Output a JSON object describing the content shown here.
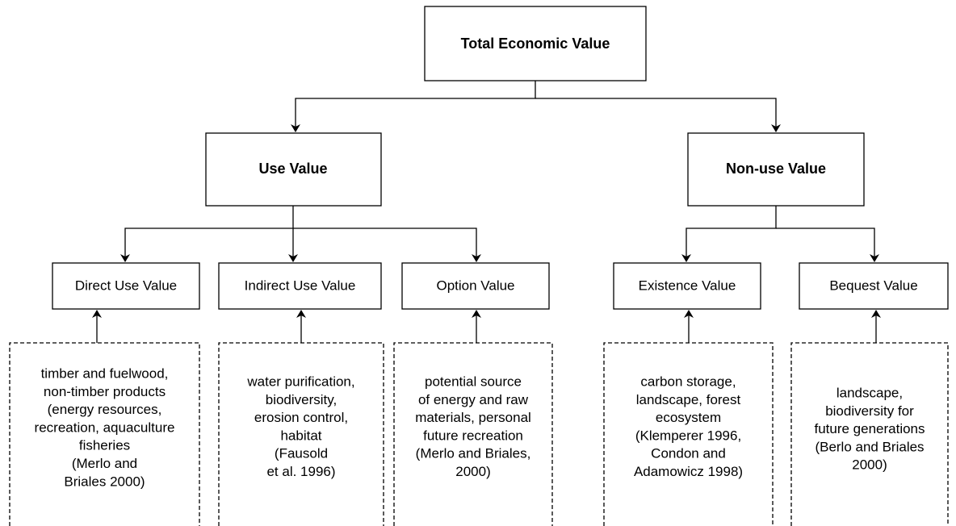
{
  "root": {
    "label": "Total Economic Value"
  },
  "categories": [
    {
      "label": "Use Value"
    },
    {
      "label": "Non-use Value"
    }
  ],
  "values": [
    {
      "label": "Direct Use Value",
      "examples": [
        "timber and fuelwood,",
        "non-timber products",
        "(energy resources,",
        "recreation, aquaculture",
        "fisheries",
        "(Merlo and",
        "Briales 2000)"
      ]
    },
    {
      "label": "Indirect Use Value",
      "examples": [
        "water purification,",
        "biodiversity,",
        "erosion control,",
        "habitat",
        "(Fausold",
        "et al. 1996)"
      ]
    },
    {
      "label": "Option Value",
      "examples": [
        "potential source",
        "of energy and raw",
        "materials, personal",
        "future recreation",
        "(Merlo and Briales,",
        "2000)"
      ]
    },
    {
      "label": "Existence Value",
      "examples": [
        "carbon storage,",
        "landscape, forest",
        "ecosystem",
        "(Klemperer 1996,",
        "Condon and",
        "Adamowicz 1998)"
      ]
    },
    {
      "label": "Bequest Value",
      "examples": [
        "landscape,",
        "biodiversity for",
        "future generations",
        "(Berlo and Briales",
        "2000)"
      ]
    }
  ]
}
